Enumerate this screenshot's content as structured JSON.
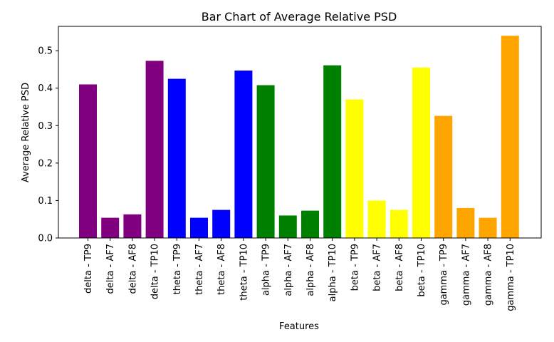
{
  "chart_data": {
    "type": "bar",
    "title": "Bar Chart of Average Relative PSD",
    "xlabel": "Features",
    "ylabel": "Average Relative PSD",
    "ylim": [
      0,
      0.565
    ],
    "yticks": [
      "0.0",
      "0.1",
      "0.2",
      "0.3",
      "0.4",
      "0.5"
    ],
    "grid": false,
    "categories": [
      "delta - TP9",
      "delta - AF7",
      "delta - AF8",
      "delta - TP10",
      "theta - TP9",
      "theta - AF7",
      "theta - AF8",
      "theta - TP10",
      "alpha - TP9",
      "alpha - AF7",
      "alpha - AF8",
      "alpha - TP10",
      "beta - TP9",
      "beta - AF7",
      "beta - AF8",
      "beta - TP10",
      "gamma - TP9",
      "gamma - AF7",
      "gamma - AF8",
      "gamma - TP10"
    ],
    "values": [
      0.41,
      0.054,
      0.063,
      0.473,
      0.425,
      0.054,
      0.075,
      0.447,
      0.408,
      0.06,
      0.073,
      0.461,
      0.37,
      0.1,
      0.075,
      0.455,
      0.326,
      0.08,
      0.054,
      0.54
    ],
    "colors": [
      "#800080",
      "#800080",
      "#800080",
      "#800080",
      "#0000ff",
      "#0000ff",
      "#0000ff",
      "#0000ff",
      "#008000",
      "#008000",
      "#008000",
      "#008000",
      "#ffff00",
      "#ffff00",
      "#ffff00",
      "#ffff00",
      "#ffa500",
      "#ffa500",
      "#ffa500",
      "#ffa500"
    ]
  }
}
